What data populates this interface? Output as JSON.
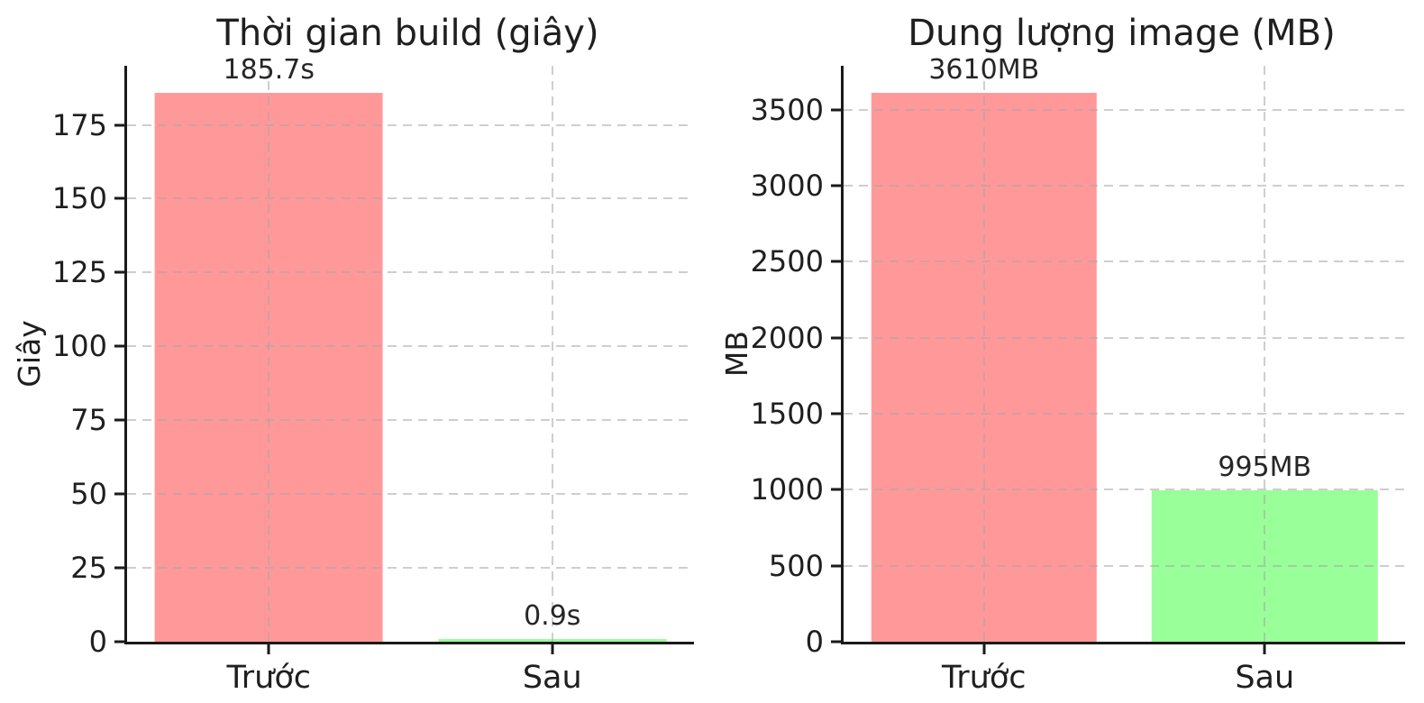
{
  "figure": {
    "background_color": "#ffffff",
    "text_color": "#1a1a1a",
    "axis_color": "#1a1a1a",
    "grid_color": "#cccccc",
    "grid_style": "dashed"
  },
  "chart_data": [
    {
      "type": "bar",
      "title": "Thời gian build (giây)",
      "ylabel": "Giây",
      "xlabel": "",
      "categories": [
        "Trước",
        "Sau"
      ],
      "values": [
        185.7,
        0.9
      ],
      "bar_labels": [
        "185.7s",
        "0.9s"
      ],
      "bar_colors": [
        "#ff9999",
        "#99ff99"
      ],
      "yticks": [
        0,
        25,
        50,
        75,
        100,
        125,
        150,
        175
      ],
      "ylim": [
        0,
        195
      ],
      "grid": "dashed both axes",
      "legend_position": "none"
    },
    {
      "type": "bar",
      "title": "Dung lượng image (MB)",
      "ylabel": "MB",
      "xlabel": "",
      "categories": [
        "Trước",
        "Sau"
      ],
      "values": [
        3610,
        995
      ],
      "bar_labels": [
        "3610MB",
        "995MB"
      ],
      "bar_colors": [
        "#ff9999",
        "#99ff99"
      ],
      "yticks": [
        0,
        500,
        1000,
        1500,
        2000,
        2500,
        3000,
        3500
      ],
      "ylim": [
        0,
        3790
      ],
      "grid": "dashed both axes",
      "legend_position": "none"
    }
  ]
}
